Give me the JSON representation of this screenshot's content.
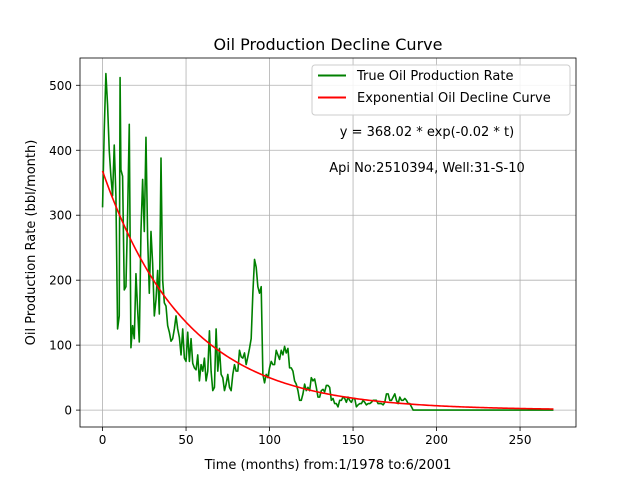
{
  "chart_data": {
    "type": "line",
    "title": "Oil Production Decline Curve",
    "xlabel": "Time (months) from:1/1978 to:6/2001",
    "ylabel": "Oil Production Rate (bbl/month)",
    "xlim": [
      -13.5,
      283.5
    ],
    "ylim": [
      -26,
      542
    ],
    "x_ticks": [
      0,
      50,
      100,
      150,
      200,
      250
    ],
    "y_ticks": [
      0,
      100,
      200,
      300,
      400,
      500
    ],
    "grid": true,
    "legend_position": "top-right",
    "annotations": {
      "equation": "y = 368.02 * exp(-0.02 * t)",
      "well": "Api No:2510394, Well:31-S-10"
    },
    "series": [
      {
        "name": "True Oil Production Rate",
        "color": "#008000",
        "points": [
          [
            0,
            312
          ],
          [
            1,
            430
          ],
          [
            2,
            518
          ],
          [
            3,
            470
          ],
          [
            4,
            400
          ],
          [
            5,
            360
          ],
          [
            6,
            330
          ],
          [
            7,
            408
          ],
          [
            8,
            330
          ],
          [
            9,
            125
          ],
          [
            10,
            145
          ],
          [
            10.5,
            512
          ],
          [
            11,
            370
          ],
          [
            12,
            360
          ],
          [
            13,
            185
          ],
          [
            14,
            190
          ],
          [
            15,
            300
          ],
          [
            16,
            440
          ],
          [
            17,
            96
          ],
          [
            18,
            130
          ],
          [
            19,
            110
          ],
          [
            20,
            210
          ],
          [
            21,
            155
          ],
          [
            22,
            105
          ],
          [
            23,
            275
          ],
          [
            24,
            355
          ],
          [
            25,
            275
          ],
          [
            26,
            420
          ],
          [
            27,
            265
          ],
          [
            28,
            180
          ],
          [
            29,
            275
          ],
          [
            30,
            225
          ],
          [
            31,
            145
          ],
          [
            32,
            170
          ],
          [
            33,
            215
          ],
          [
            34,
            148
          ],
          [
            35,
            388
          ],
          [
            36,
            200
          ],
          [
            37,
            165
          ],
          [
            38,
            160
          ],
          [
            39,
            130
          ],
          [
            40,
            120
          ],
          [
            41,
            106
          ],
          [
            42,
            110
          ],
          [
            43,
            125
          ],
          [
            44,
            145
          ],
          [
            45,
            125
          ],
          [
            46,
            112
          ],
          [
            47,
            85
          ],
          [
            48,
            125
          ],
          [
            49,
            80
          ],
          [
            50,
            75
          ],
          [
            51,
            120
          ],
          [
            52,
            75
          ],
          [
            53,
            110
          ],
          [
            54,
            72
          ],
          [
            55,
            65
          ],
          [
            56,
            62
          ],
          [
            57,
            85
          ],
          [
            58,
            45
          ],
          [
            59,
            70
          ],
          [
            60,
            60
          ],
          [
            61,
            80
          ],
          [
            62,
            45
          ],
          [
            63,
            60
          ],
          [
            64,
            122
          ],
          [
            65,
            60
          ],
          [
            66,
            30
          ],
          [
            67,
            35
          ],
          [
            68,
            125
          ],
          [
            69,
            60
          ],
          [
            70,
            95
          ],
          [
            71,
            55
          ],
          [
            72,
            50
          ],
          [
            73,
            30
          ],
          [
            74,
            40
          ],
          [
            75,
            55
          ],
          [
            76,
            35
          ],
          [
            77,
            30
          ],
          [
            78,
            55
          ],
          [
            79,
            70
          ],
          [
            80,
            60
          ],
          [
            81,
            60
          ],
          [
            82,
            92
          ],
          [
            83,
            82
          ],
          [
            84,
            80
          ],
          [
            85,
            88
          ],
          [
            86,
            70
          ],
          [
            87,
            82
          ],
          [
            88,
            95
          ],
          [
            89,
            110
          ],
          [
            90,
            180
          ],
          [
            91,
            232
          ],
          [
            92,
            220
          ],
          [
            93,
            190
          ],
          [
            94,
            180
          ],
          [
            95,
            190
          ],
          [
            96,
            55
          ],
          [
            97,
            42
          ],
          [
            98,
            55
          ],
          [
            99,
            50
          ],
          [
            100,
            65
          ],
          [
            101,
            75
          ],
          [
            102,
            70
          ],
          [
            103,
            70
          ],
          [
            104,
            92
          ],
          [
            105,
            85
          ],
          [
            106,
            78
          ],
          [
            107,
            92
          ],
          [
            108,
            85
          ],
          [
            109,
            98
          ],
          [
            110,
            88
          ],
          [
            111,
            95
          ],
          [
            112,
            65
          ],
          [
            113,
            65
          ],
          [
            114,
            60
          ],
          [
            115,
            45
          ],
          [
            116,
            40
          ],
          [
            117,
            30
          ],
          [
            118,
            15
          ],
          [
            119,
            15
          ],
          [
            120,
            25
          ],
          [
            121,
            40
          ],
          [
            122,
            30
          ],
          [
            123,
            35
          ],
          [
            124,
            30
          ],
          [
            125,
            50
          ],
          [
            126,
            45
          ],
          [
            127,
            48
          ],
          [
            128,
            35
          ],
          [
            129,
            20
          ],
          [
            130,
            20
          ],
          [
            131,
            30
          ],
          [
            132,
            32
          ],
          [
            133,
            28
          ],
          [
            134,
            38
          ],
          [
            135,
            38
          ],
          [
            136,
            35
          ],
          [
            137,
            15
          ],
          [
            138,
            18
          ],
          [
            139,
            10
          ],
          [
            140,
            10
          ],
          [
            141,
            5
          ],
          [
            142,
            15
          ],
          [
            143,
            15
          ],
          [
            144,
            20
          ],
          [
            145,
            18
          ],
          [
            146,
            12
          ],
          [
            147,
            20
          ],
          [
            148,
            15
          ],
          [
            149,
            12
          ],
          [
            150,
            18
          ],
          [
            151,
            18
          ],
          [
            152,
            5
          ],
          [
            153,
            8
          ],
          [
            154,
            10
          ],
          [
            155,
            10
          ],
          [
            156,
            15
          ],
          [
            157,
            12
          ],
          [
            158,
            8
          ],
          [
            159,
            10
          ],
          [
            160,
            10
          ],
          [
            161,
            12
          ],
          [
            162,
            15
          ],
          [
            163,
            15
          ],
          [
            164,
            15
          ],
          [
            165,
            10
          ],
          [
            166,
            10
          ],
          [
            167,
            10
          ],
          [
            168,
            8
          ],
          [
            169,
            12
          ],
          [
            170,
            25
          ],
          [
            171,
            25
          ],
          [
            172,
            15
          ],
          [
            173,
            15
          ],
          [
            174,
            20
          ],
          [
            175,
            25
          ],
          [
            176,
            15
          ],
          [
            177,
            10
          ],
          [
            178,
            20
          ],
          [
            179,
            15
          ],
          [
            180,
            15
          ],
          [
            181,
            18
          ],
          [
            182,
            15
          ],
          [
            183,
            10
          ],
          [
            184,
            10
          ],
          [
            185,
            5
          ],
          [
            186,
            0
          ],
          [
            190,
            0
          ],
          [
            200,
            0
          ],
          [
            210,
            0
          ],
          [
            220,
            0
          ],
          [
            230,
            0
          ],
          [
            240,
            0
          ],
          [
            250,
            0
          ],
          [
            260,
            0
          ],
          [
            270,
            0
          ]
        ]
      },
      {
        "name": "Exponential Oil Decline Curve",
        "color": "#ff0000",
        "model": {
          "a": 368.02,
          "b": 0.02,
          "t_start": 0,
          "t_end": 270
        }
      }
    ]
  }
}
